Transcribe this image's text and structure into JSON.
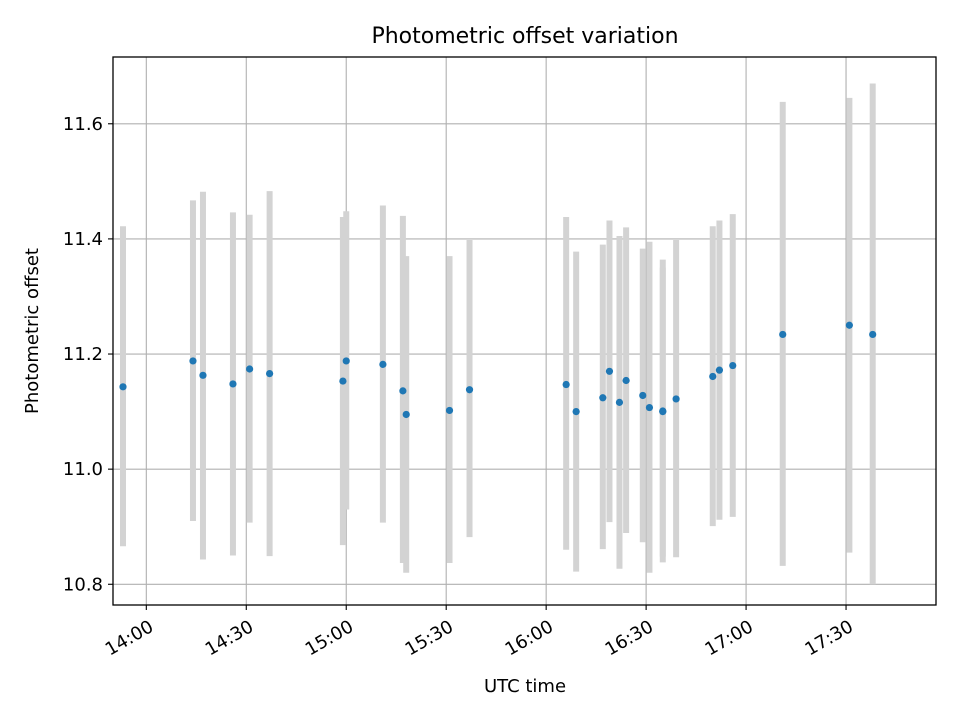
{
  "chart_data": {
    "type": "scatter",
    "title": "Photometric offset variation",
    "xlabel": "UTC time",
    "ylabel": "Photometric offset",
    "xlim": [
      "13:50",
      "17:57"
    ],
    "ylim": [
      10.764,
      11.716
    ],
    "x_ticks": [
      "14:00",
      "14:30",
      "15:00",
      "15:30",
      "16:00",
      "16:30",
      "17:00",
      "17:30"
    ],
    "y_ticks": [
      "10.8",
      "11.0",
      "11.2",
      "11.4",
      "11.6"
    ],
    "grid": true,
    "point_color": "#1f77b4",
    "errorbar_color": "#d3d3d3",
    "points": [
      {
        "t": "13:53",
        "y": 11.143,
        "lo": 10.866,
        "hi": 11.422
      },
      {
        "t": "14:14",
        "y": 11.188,
        "lo": 10.91,
        "hi": 11.467
      },
      {
        "t": "14:17",
        "y": 11.163,
        "lo": 10.843,
        "hi": 11.482
      },
      {
        "t": "14:26",
        "y": 11.148,
        "lo": 10.85,
        "hi": 11.446
      },
      {
        "t": "14:31",
        "y": 11.174,
        "lo": 10.907,
        "hi": 11.442
      },
      {
        "t": "14:37",
        "y": 11.166,
        "lo": 10.849,
        "hi": 11.483
      },
      {
        "t": "14:59",
        "y": 11.153,
        "lo": 10.868,
        "hi": 11.438
      },
      {
        "t": "15:00",
        "y": 11.188,
        "lo": 10.93,
        "hi": 11.448
      },
      {
        "t": "15:11",
        "y": 11.182,
        "lo": 10.907,
        "hi": 11.458
      },
      {
        "t": "15:17",
        "y": 11.136,
        "lo": 10.837,
        "hi": 11.44
      },
      {
        "t": "15:18",
        "y": 11.095,
        "lo": 10.82,
        "hi": 11.37
      },
      {
        "t": "15:31",
        "y": 11.102,
        "lo": 10.837,
        "hi": 11.37
      },
      {
        "t": "15:37",
        "y": 11.138,
        "lo": 10.882,
        "hi": 11.398
      },
      {
        "t": "16:06",
        "y": 11.147,
        "lo": 10.86,
        "hi": 11.438
      },
      {
        "t": "16:09",
        "y": 11.1,
        "lo": 10.822,
        "hi": 11.378
      },
      {
        "t": "16:17",
        "y": 11.124,
        "lo": 10.861,
        "hi": 11.39
      },
      {
        "t": "16:19",
        "y": 11.17,
        "lo": 10.908,
        "hi": 11.432
      },
      {
        "t": "16:22",
        "y": 11.116,
        "lo": 10.827,
        "hi": 11.405
      },
      {
        "t": "16:24",
        "y": 11.154,
        "lo": 10.889,
        "hi": 11.42
      },
      {
        "t": "16:29",
        "y": 11.128,
        "lo": 10.873,
        "hi": 11.383
      },
      {
        "t": "16:31",
        "y": 11.107,
        "lo": 10.82,
        "hi": 11.395
      },
      {
        "t": "16:35",
        "y": 11.101,
        "lo": 10.838,
        "hi": 11.364
      },
      {
        "t": "16:35",
        "y": 11.1,
        "lo": 10.848,
        "hi": 11.35
      },
      {
        "t": "16:39",
        "y": 11.122,
        "lo": 10.847,
        "hi": 11.398
      },
      {
        "t": "16:50",
        "y": 11.161,
        "lo": 10.901,
        "hi": 11.422
      },
      {
        "t": "16:52",
        "y": 11.172,
        "lo": 10.912,
        "hi": 11.432
      },
      {
        "t": "16:56",
        "y": 11.18,
        "lo": 10.917,
        "hi": 11.443
      },
      {
        "t": "17:11",
        "y": 11.234,
        "lo": 10.832,
        "hi": 11.638
      },
      {
        "t": "17:31",
        "y": 11.25,
        "lo": 10.855,
        "hi": 11.645
      },
      {
        "t": "17:38",
        "y": 11.234,
        "lo": 10.8,
        "hi": 11.67
      }
    ]
  }
}
